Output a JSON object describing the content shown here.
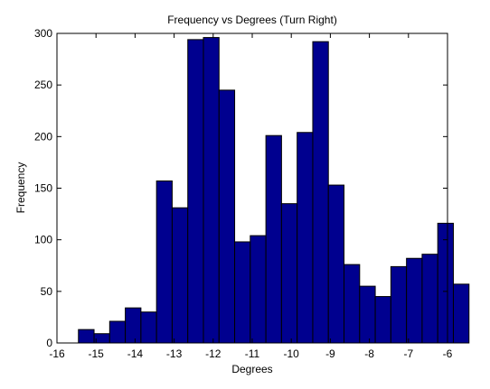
{
  "chart_data": {
    "type": "bar",
    "title": "Frequency vs Degrees (Turn Right)",
    "xlabel": "Degrees",
    "ylabel": "Frequency",
    "xlim": [
      -16,
      -6
    ],
    "ylim": [
      0,
      300
    ],
    "xticks": [
      "-16",
      "-15",
      "-14",
      "-13",
      "-12",
      "-11",
      "-10",
      "-9",
      "-8",
      "-7",
      "-6"
    ],
    "yticks": [
      "0",
      "50",
      "100",
      "150",
      "200",
      "250",
      "300"
    ],
    "grid": false,
    "legend": "none",
    "colors": {
      "bar_fill": "#00008f",
      "bar_edge": "#000000",
      "axis": "#000000",
      "background": "#ffffff"
    },
    "bins": [
      {
        "x0": -15.45,
        "x1": -15.05,
        "value": 13
      },
      {
        "x0": -15.05,
        "x1": -14.65,
        "value": 9
      },
      {
        "x0": -14.65,
        "x1": -14.25,
        "value": 21
      },
      {
        "x0": -14.25,
        "x1": -13.85,
        "value": 34
      },
      {
        "x0": -13.85,
        "x1": -13.45,
        "value": 30
      },
      {
        "x0": -13.45,
        "x1": -13.05,
        "value": 157
      },
      {
        "x0": -13.05,
        "x1": -12.65,
        "value": 131
      },
      {
        "x0": -12.65,
        "x1": -12.25,
        "value": 294
      },
      {
        "x0": -12.25,
        "x1": -11.85,
        "value": 296
      },
      {
        "x0": -11.85,
        "x1": -11.45,
        "value": 245
      },
      {
        "x0": -11.45,
        "x1": -11.05,
        "value": 98
      },
      {
        "x0": -11.05,
        "x1": -10.65,
        "value": 104
      },
      {
        "x0": -10.65,
        "x1": -10.25,
        "value": 201
      },
      {
        "x0": -10.25,
        "x1": -9.85,
        "value": 135
      },
      {
        "x0": -9.85,
        "x1": -9.45,
        "value": 204
      },
      {
        "x0": -9.45,
        "x1": -9.05,
        "value": 292
      },
      {
        "x0": -9.05,
        "x1": -8.65,
        "value": 153
      },
      {
        "x0": -8.65,
        "x1": -8.25,
        "value": 76
      },
      {
        "x0": -8.25,
        "x1": -7.85,
        "value": 55
      },
      {
        "x0": -7.85,
        "x1": -7.45,
        "value": 45
      },
      {
        "x0": -7.45,
        "x1": -7.05,
        "value": 74
      },
      {
        "x0": -7.05,
        "x1": -6.65,
        "value": 82
      },
      {
        "x0": -6.65,
        "x1": -6.25,
        "value": 86
      },
      {
        "x0": -6.25,
        "x1": -5.85,
        "value": 116
      },
      {
        "x0": -5.85,
        "x1": -5.45,
        "value": 57
      }
    ]
  }
}
